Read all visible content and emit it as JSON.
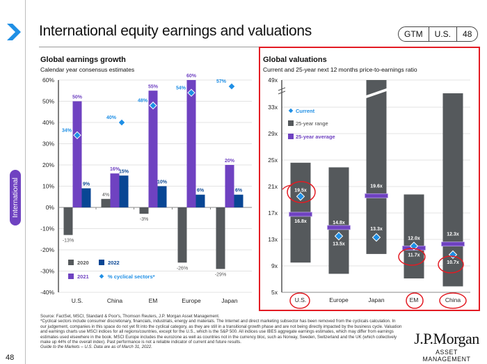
{
  "header": {
    "title": "International equity earnings and valuations",
    "badge": [
      "GTM",
      "U.S.",
      "48"
    ],
    "chevron_icon": "chevron-right-icon"
  },
  "side_tab": "International",
  "page_number": "48",
  "footer": {
    "source": "Source: FactSet, MSCI, Standard & Poor's, Thomson Reuters, J.P. Morgan Asset Management.",
    "note": "*Cyclical sectors include consumer discretionary, financials, industrials, energy and materials. The Internet and direct marketing subsector has been removed from the cyclicals calculation. In our judgement, companies in this space do not yet fit into the cyclical category, as they are still in a transitional growth phase and are not being directly impacted by the business cycle. Valuation and earnings charts use MSCI indices for all regions/countries, except for the U.S., which is the S&P 500. All indices use IBES aggregate earnings estimates, which may differ from earnings estimates used elsewhere in the book. MSCI Europe includes the eurozone as well as countries not in the currency bloc, such as Norway, Sweden, Switzerland and the UK (which collectively make up 44% of the overall index). Past performance is not a reliable indicator of current and future results.",
    "guide": "Guide to the Markets – U.S. Data are as of March 31, 2022."
  },
  "logo": {
    "name": "J.P.Morgan",
    "sub": "ASSET MANAGEMENT"
  },
  "colors": {
    "c2020": "#55595c",
    "c2021": "#6f42c1",
    "c2022": "#084694",
    "cyclical": "#1f8fe5",
    "range": "#55595c",
    "avg": "#6f42c1",
    "highlight": "#e31b23"
  },
  "chart_data": [
    {
      "type": "bar",
      "title": "Global earnings growth",
      "subtitle": "Calendar year consensus estimates",
      "categories": [
        "U.S.",
        "China",
        "EM",
        "Europe",
        "Japan"
      ],
      "series": [
        {
          "name": "2020",
          "values": [
            -13,
            4,
            -3,
            -26,
            -29
          ]
        },
        {
          "name": "2021",
          "values": [
            50,
            16,
            55,
            60,
            20
          ]
        },
        {
          "name": "2022",
          "values": [
            9,
            15,
            10,
            6,
            6
          ]
        },
        {
          "name": "% cyclical sectors*",
          "type": "scatter",
          "values": [
            34,
            40,
            48,
            54,
            57
          ]
        }
      ],
      "data_labels": {
        "2020": [
          "-13%",
          "4%",
          "-3%",
          "-26%",
          "-29%"
        ],
        "2021": [
          "50%",
          "16%",
          "55%",
          "60%",
          "20%"
        ],
        "2022": [
          "9%",
          "15%",
          "10%",
          "6%",
          "6%"
        ],
        "cyclical": [
          "34%",
          "40%",
          "48%",
          "54%",
          "57%"
        ]
      },
      "yticks": [
        "60%",
        "50%",
        "40%",
        "30%",
        "20%",
        "10%",
        "0%",
        "-10%",
        "-20%",
        "-30%",
        "-40%"
      ],
      "ylim": [
        -40,
        60
      ],
      "grid": true,
      "legend": [
        "2020",
        "2022",
        "2021",
        "% cyclical sectors*"
      ],
      "legend_position": "bottom-left"
    },
    {
      "type": "range-bar",
      "title": "Global valuations",
      "subtitle": "Current and 25-year next 12 months price-to-earnings ratio",
      "categories": [
        "U.S.",
        "Europe",
        "Japan",
        "EM",
        "China"
      ],
      "range_low": [
        9.5,
        7.8,
        10.8,
        7.1,
        5.9
      ],
      "range_high": [
        24.6,
        23.9,
        49,
        19.8,
        35.1
      ],
      "range_broken": [
        false,
        false,
        true,
        false,
        false
      ],
      "average": [
        16.8,
        14.8,
        19.6,
        11.7,
        12.3
      ],
      "current": [
        19.5,
        13.5,
        13.3,
        12.0,
        10.7
      ],
      "average_labels": [
        "16.8x",
        "14.8x",
        "19.6x",
        "11.7x",
        "12.3x"
      ],
      "current_labels": [
        "19.5x",
        "13.5x",
        "13.3x",
        "12.0x",
        "10.7x"
      ],
      "yticks": [
        "49x",
        "33x",
        "29x",
        "25x",
        "21x",
        "17x",
        "13x",
        "9x",
        "5x"
      ],
      "ylim": [
        5,
        49
      ],
      "axis_break": "between 33x and 49x",
      "grid": true,
      "legend": [
        "Current",
        "25-year range",
        "25-year average"
      ],
      "legend_position": "top-left",
      "highlighted_labels": [
        "19.5x",
        "11.7x",
        "10.7x"
      ],
      "highlighted_categories": [
        "U.S.",
        "EM",
        "China"
      ]
    }
  ]
}
